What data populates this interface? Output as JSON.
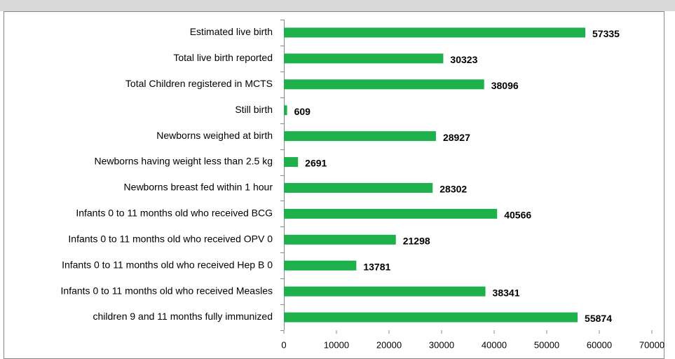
{
  "chart_data": {
    "type": "bar",
    "orientation": "horizontal",
    "categories": [
      "Estimated live birth",
      "Total live birth reported",
      "Total Children registered in MCTS",
      "Still birth",
      "Newborns weighed at birth",
      "Newborns having weight less than 2.5 kg",
      "Newborns breast fed within 1 hour",
      "Infants 0 to 11 months old who received BCG",
      "Infants 0 to 11 months old who received OPV 0",
      "Infants 0 to 11 months old who received Hep B 0",
      "Infants 0 to 11 months old who received Measles",
      "children 9 and 11 months fully immunized"
    ],
    "values": [
      57335,
      30323,
      38096,
      609,
      28927,
      2691,
      28302,
      40566,
      21298,
      13781,
      38341,
      55874
    ],
    "color": "#1db04b",
    "xlim": [
      0,
      70000
    ],
    "xticks": [
      0,
      10000,
      20000,
      30000,
      40000,
      50000,
      60000,
      70000
    ],
    "grid": false
  }
}
